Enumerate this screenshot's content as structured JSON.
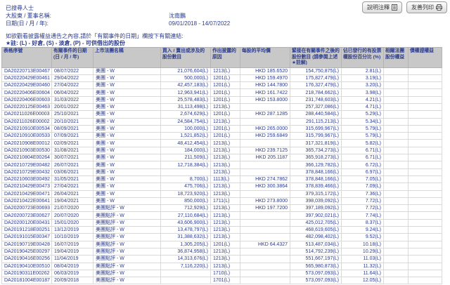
{
  "toolbar": {
    "notes_label": "說明注釋",
    "print_label": "友善列印"
  },
  "header": {
    "searched_person": "已搜尋人士",
    "name_label": "大股東 / 董事名稱:",
    "name_value": "沈南鵬",
    "date_label": "日期(日 / 月 / 年):",
    "date_value": "09/01/2018 - 14/07/2022",
    "instruction": "如欲觀看披露權益通告之內容,請於「有關事件的日期」欄按下有關連結:",
    "note": "★註: (L) - 好倉, (S) - 淡倉, (P) - 可供借出的股份"
  },
  "colors": {
    "text_navy": "#2b3b8c",
    "header_bg": "#c8c8c8"
  },
  "table": {
    "columns": [
      "表格序號",
      "有關事件的日期 (日 / 月 / 年)",
      "上市法團名稱",
      "買入 / 賣出或涉及的股份數目",
      "作出披露的原因",
      "每股的平均價",
      "緊接在有關事件之後的股份數目 (請參閱上述★註解)",
      "佔已發行的有投票權股份百分比 (%)",
      "相關法團股份權益",
      "債權證權益"
    ],
    "rows": [
      [
        "DA20220713E00467",
        "08/07/2022",
        "美團 - W",
        "21,076,604(L)",
        "1213(L)",
        "HKD 185.6520",
        "154,750,875(L)",
        "2.81(L)",
        "",
        ""
      ],
      [
        "DA20220429E00461",
        "29/04/2022",
        "美團 - W",
        "500,000(L)",
        "1201(L)",
        "HKD 159.4970",
        "175,827,479(L)",
        "3.19(L)",
        "",
        ""
      ],
      [
        "DA20220429E00460",
        "27/04/2022",
        "美團 - W",
        "42,457,183(L)",
        "1201(L)",
        "HKD 144.7800",
        "176,327,479(L)",
        "3.20(L)",
        "",
        ""
      ],
      [
        "DA20220406E00604",
        "06/04/2022",
        "美團 - W",
        "12,963,941(L)",
        "1201(L)",
        "HKD 161.7422",
        "218,784,662(L)",
        "3.98(L)",
        "",
        ""
      ],
      [
        "DA20220406E00603",
        "31/03/2022",
        "美團 - W",
        "25,578,483(L)",
        "1201(L)",
        "HKD 153.8000",
        "231,748,603(L)",
        "4.21(L)",
        "",
        ""
      ],
      [
        "DA20220125E00463",
        "20/01/2022",
        "美團 - W",
        "31,113,498(L)",
        "1213(L)",
        "",
        "257,327,086(L)",
        "4.71(L)",
        "",
        ""
      ],
      [
        "DA20211026E00003",
        "25/10/2021",
        "美團 - W",
        "2,674,629(L)",
        "1201(L)",
        "HKD 287.1285",
        "288,440,584(L)",
        "5.29(L)",
        "",
        ""
      ],
      [
        "DA20211026E00002",
        "20/10/2021",
        "美團 - W",
        "24,584,754(L)",
        "1213(L)",
        "",
        "291,115,213(L)",
        "5.34(L)",
        "",
        ""
      ],
      [
        "DA20210910E00534",
        "08/09/2021",
        "美團 - W",
        "100,000(L)",
        "1201(L)",
        "HKD 265.0000",
        "315,699,967(L)",
        "5.79(L)",
        "",
        ""
      ],
      [
        "DA20210910E00533",
        "07/09/2021",
        "美團 - W",
        "1,521,852(L)",
        "1201(L)",
        "HKD 259.6849",
        "315,799,967(L)",
        "5.79(L)",
        "",
        ""
      ],
      [
        "DA20210908E00012",
        "02/09/2021",
        "美團 - W",
        "48,412,454(L)",
        "1213(L)",
        "",
        "317,321,819(L)",
        "5.82(L)",
        "",
        ""
      ],
      [
        "DA20210903E00530",
        "31/08/2021",
        "美團 - W",
        "184,000(L)",
        "1213(L)",
        "HKD 239.7125",
        "365,734,273(L)",
        "6.71(L)",
        "",
        ""
      ],
      [
        "DA20210804E00264",
        "30/07/2021",
        "美團 - W",
        "211,509(L)",
        "1213(L)",
        "HKD 205.1187",
        "365,918,273(L)",
        "6.71(L)",
        "",
        ""
      ],
      [
        "DA20210729E00482",
        "26/07/2021",
        "美團 - W",
        "12,718,384(L)",
        "1213(L)",
        "",
        "366,129,782(L)",
        "6.72(L)",
        "",
        ""
      ],
      [
        "DA20210729E00432",
        "03/06/2021",
        "美團 - W",
        "",
        "1213(L)",
        "",
        "378,848,166(L)",
        "6.97(L)",
        "",
        ""
      ],
      [
        "DA20210603E00492",
        "31/05/2021",
        "美團 - W",
        "8,700(L)",
        "1113(L)",
        "HKD 274.7862",
        "378,848,166(L)",
        "7.05(L)",
        "",
        ""
      ],
      [
        "DA20210429E00473",
        "27/04/2021",
        "美團 - W",
        "475,706(L)",
        "1213(L)",
        "HKD 300.3864",
        "378,839,466(L)",
        "7.09(L)",
        "",
        ""
      ],
      [
        "DA20210429E00471",
        "26/04/2021",
        "美團 - W",
        "18,723,920(L)",
        "1213(L)",
        "",
        "379,315,172(L)",
        "7.36(L)",
        "",
        ""
      ],
      [
        "DA20210422E00641",
        "19/04/2021",
        "美團 - W",
        "850,000(L)",
        "1711(L)",
        "HKD 273.8000",
        "398,039,092(L)",
        "7.72(L)",
        "",
        ""
      ],
      [
        "DA20200723E00693",
        "21/07/2020",
        "美團點評 - W",
        "712,929(L)",
        "1213(L)",
        "HKD 197.7200",
        "397,189,092(L)",
        "7.72(L)",
        "",
        ""
      ],
      [
        "DA20200723E00627",
        "20/07/2020",
        "美團點評 - W",
        "27,110,684(L)",
        "1213(L)",
        "",
        "397,902,021(L)",
        "7.74(L)",
        "",
        ""
      ],
      [
        "DA20200120E00431",
        "15/01/2020",
        "美團點評 - W",
        "43,606,900(L)",
        "1213(L)",
        "",
        "425,012,705(L)",
        "8.37(L)",
        "",
        ""
      ],
      [
        "DA20191218E00251",
        "13/12/2019",
        "美團點評 - W",
        "13,478,797(L)",
        "1213(L)",
        "",
        "468,619,605(L)",
        "9.24(L)",
        "",
        ""
      ],
      [
        "DA20191015E00347",
        "10/10/2019",
        "美團點評 - W",
        "31,388,632(L)",
        "1213(L)",
        "",
        "482,098,402(L)",
        "9.52(L)",
        "",
        ""
      ],
      [
        "DA20190719E00428",
        "16/07/2019",
        "美團點評 - W",
        "1,305,205(L)",
        "1201(L)",
        "HKD 64.4327",
        "513,487,034(L)",
        "10.18(L)",
        "",
        ""
      ],
      [
        "DA20190425E00297",
        "19/04/2019",
        "美團點評 - W",
        "36,874,958(L)",
        "1213(L)",
        "",
        "514,792,239(L)",
        "10.29(L)",
        "",
        ""
      ],
      [
        "DA20190416E00256",
        "11/04/2019",
        "美團點評 - W",
        "14,313,676(L)",
        "1213(L)",
        "",
        "551,667,197(L)",
        "11.03(L)",
        "",
        ""
      ],
      [
        "DA20190410E00510",
        "08/04/2019",
        "美團點評 - W",
        "7,116,220(L)",
        "1213(L)",
        "",
        "565,980,873(L)",
        "11.32(L)",
        "",
        ""
      ],
      [
        "DA20190311E00262",
        "06/03/2019",
        "美團點評 - W",
        "",
        "1710(L)",
        "",
        "573,097,093(L)",
        "11.64(L)",
        "",
        ""
      ],
      [
        "DA20181004E00187",
        "20/09/2018",
        "美團點評 - W",
        "",
        "1701(L)",
        "",
        "573,097,093(L)",
        "12.05(L)",
        "",
        ""
      ]
    ]
  }
}
